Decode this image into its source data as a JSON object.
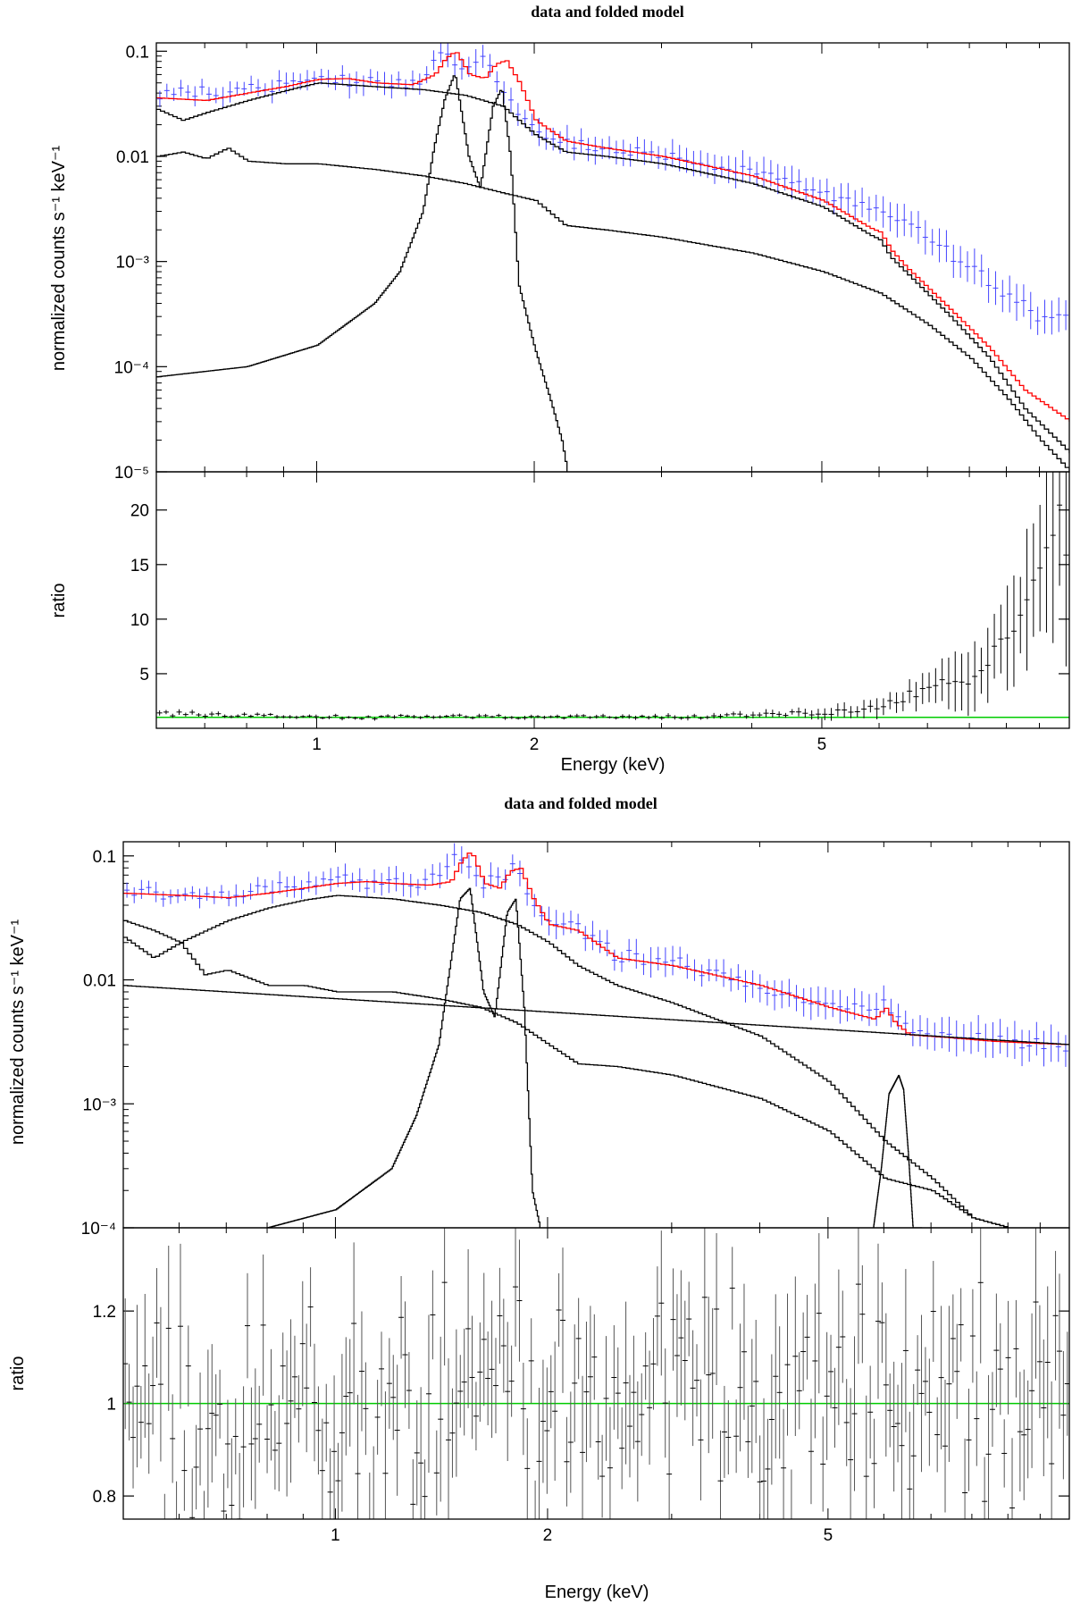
{
  "chart_data": [
    {
      "type": "line",
      "title": "data and folded model",
      "xlabel": "Energy (keV)",
      "x_scale": "log",
      "xlim": [
        0.6,
        11.0
      ],
      "x_ticks": [
        {
          "value": 1,
          "label": "1"
        },
        {
          "value": 2,
          "label": "2"
        },
        {
          "value": 5,
          "label": "5"
        }
      ],
      "top_panel": {
        "ylabel": "normalized counts s⁻¹ keV⁻¹",
        "y_scale": "log",
        "ylim": [
          1e-05,
          0.12
        ],
        "y_ticks": [
          {
            "value": 0.1,
            "label": "0.1"
          },
          {
            "value": 0.01,
            "label": "0.01"
          },
          {
            "value": 0.001,
            "label": "10⁻³"
          },
          {
            "value": 0.0001,
            "label": "10⁻⁴"
          },
          {
            "value": 1e-05,
            "label": "10⁻⁵"
          }
        ],
        "series": [
          {
            "name": "data",
            "style": "errorbars",
            "color": "#4444ff",
            "energies": [
              0.65,
              0.7,
              0.75,
              0.8,
              0.9,
              1.0,
              1.1,
              1.2,
              1.3,
              1.4,
              1.5,
              1.6,
              1.7,
              1.85,
              2.0,
              2.2,
              2.5,
              3.0,
              3.5,
              4.0,
              4.5,
              5.0,
              5.5,
              6.0,
              6.5,
              7.0,
              7.5,
              8.0,
              9.0,
              10.0
            ],
            "values": [
              0.04,
              0.042,
              0.04,
              0.044,
              0.048,
              0.058,
              0.052,
              0.05,
              0.05,
              0.052,
              0.1,
              0.058,
              0.085,
              0.035,
              0.018,
              0.014,
              0.012,
              0.01,
              0.0085,
              0.007,
              0.0055,
              0.0045,
              0.0035,
              0.003,
              0.0025,
              0.0018,
              0.0012,
              0.0009,
              0.0005,
              0.0003
            ]
          },
          {
            "name": "total model",
            "color": "#ff0000",
            "x": [
              0.6,
              0.7,
              0.8,
              0.9,
              1.0,
              1.1,
              1.2,
              1.35,
              1.45,
              1.5,
              1.55,
              1.62,
              1.7,
              1.76,
              1.82,
              1.9,
              2.0,
              2.2,
              2.5,
              3.0,
              4.0,
              5.0,
              5.8,
              6.0,
              6.2,
              6.5,
              7.5,
              8.5,
              9.5,
              11.0
            ],
            "y": [
              0.036,
              0.034,
              0.04,
              0.046,
              0.054,
              0.055,
              0.05,
              0.048,
              0.06,
              0.085,
              0.1,
              0.06,
              0.055,
              0.075,
              0.082,
              0.05,
              0.022,
              0.014,
              0.012,
              0.01,
              0.0065,
              0.0038,
              0.0021,
              0.0019,
              0.0013,
              0.0009,
              0.00035,
              0.00015,
              6e-05,
              3e-05
            ]
          },
          {
            "name": "continuum component 1",
            "color": "#000000",
            "x": [
              0.6,
              0.65,
              0.7,
              0.8,
              0.9,
              1.0,
              1.2,
              1.4,
              1.6,
              1.8,
              2.0,
              2.2,
              2.5,
              3.0,
              4.0,
              5.0,
              5.8,
              6.0,
              6.2,
              6.5,
              7.5,
              8.5,
              9.5,
              11.0
            ],
            "y": [
              0.028,
              0.022,
              0.026,
              0.034,
              0.042,
              0.05,
              0.046,
              0.043,
              0.038,
              0.03,
              0.016,
              0.011,
              0.01,
              0.0085,
              0.0055,
              0.0033,
              0.0018,
              0.0016,
              0.0011,
              0.0008,
              0.0003,
              0.00012,
              4e-05,
              1.5e-05
            ]
          },
          {
            "name": "continuum component 2",
            "color": "#000000",
            "x": [
              0.6,
              0.65,
              0.7,
              0.75,
              0.8,
              0.9,
              1.0,
              1.2,
              1.4,
              1.6,
              1.8,
              2.0,
              2.2,
              2.5,
              3.0,
              4.0,
              5.0,
              6.0,
              7.0,
              8.0,
              9.0,
              10.0,
              11.0
            ],
            "y": [
              0.01,
              0.011,
              0.0095,
              0.012,
              0.009,
              0.0085,
              0.0085,
              0.0075,
              0.0065,
              0.0055,
              0.0045,
              0.0038,
              0.0022,
              0.002,
              0.0017,
              0.0012,
              0.0008,
              0.0005,
              0.00025,
              0.00012,
              5e-05,
              2e-05,
              1e-05
            ]
          },
          {
            "name": "line component",
            "color": "#000000",
            "x": [
              0.6,
              0.8,
              1.0,
              1.2,
              1.3,
              1.4,
              1.45,
              1.5,
              1.55,
              1.62,
              1.68,
              1.75,
              1.8,
              1.85,
              1.9,
              2.0,
              2.1,
              2.18,
              2.22
            ],
            "y": [
              8e-05,
              0.0001,
              0.00016,
              0.0004,
              0.0008,
              0.003,
              0.012,
              0.035,
              0.062,
              0.01,
              0.005,
              0.03,
              0.045,
              0.01,
              0.0006,
              0.00015,
              5e-05,
              2e-05,
              1e-05
            ]
          }
        ]
      },
      "bottom_panel": {
        "ylabel": "ratio",
        "ylim": [
          0,
          23.5
        ],
        "y_ticks": [
          {
            "value": 5,
            "label": "5"
          },
          {
            "value": 10,
            "label": "10"
          },
          {
            "value": 15,
            "label": "15"
          },
          {
            "value": 20,
            "label": "20"
          }
        ],
        "reference_line": {
          "value": 1,
          "color": "#00cc00"
        },
        "series": [
          {
            "name": "ratio",
            "style": "errorbars",
            "color": "#000000",
            "energies": [
              0.65,
              0.8,
              1.0,
              1.2,
              1.5,
              2.0,
              2.5,
              3.0,
              3.5,
              4.0,
              4.5,
              5.0,
              5.5,
              6.0,
              6.5,
              7.0,
              7.5,
              8.0,
              8.5,
              9.0,
              9.5,
              10.0,
              10.5
            ],
            "values": [
              1.3,
              1.2,
              1.1,
              1.0,
              1.1,
              1.0,
              1.05,
              1.0,
              1.1,
              1.2,
              1.3,
              1.4,
              1.6,
              2.0,
              2.8,
              3.5,
              4.2,
              4.8,
              6.0,
              8.0,
              10.5,
              14.0,
              18.0
            ],
            "errors": [
              0.2,
              0.15,
              0.15,
              0.15,
              0.15,
              0.15,
              0.15,
              0.2,
              0.2,
              0.3,
              0.3,
              0.4,
              0.6,
              0.8,
              1.0,
              1.5,
              2.0,
              2.5,
              3.0,
              4.0,
              5.0,
              7.0,
              9.0
            ]
          }
        ]
      }
    },
    {
      "type": "line",
      "title": "data and folded model",
      "xlabel": "Energy (keV)",
      "x_scale": "log",
      "xlim": [
        0.5,
        11.0
      ],
      "x_ticks": [
        {
          "value": 1,
          "label": "1"
        },
        {
          "value": 2,
          "label": "2"
        },
        {
          "value": 5,
          "label": "5"
        }
      ],
      "top_panel": {
        "ylabel": "normalized counts s⁻¹ keV⁻¹",
        "y_scale": "log",
        "ylim": [
          0.0001,
          0.13
        ],
        "y_ticks": [
          {
            "value": 0.1,
            "label": "0.1"
          },
          {
            "value": 0.01,
            "label": "0.01"
          },
          {
            "value": 0.001,
            "label": "10⁻³"
          },
          {
            "value": 0.0001,
            "label": "10⁻⁴"
          }
        ],
        "series": [
          {
            "name": "data",
            "style": "errorbars",
            "color": "#4444ff",
            "energies": [
              0.55,
              0.6,
              0.65,
              0.7,
              0.8,
              0.9,
              1.0,
              1.1,
              1.2,
              1.3,
              1.4,
              1.5,
              1.6,
              1.7,
              1.8,
              1.9,
              2.0,
              2.2,
              2.5,
              3.0,
              3.5,
              4.0,
              4.5,
              5.0,
              5.5,
              6.0,
              6.5,
              7.0,
              8.0,
              9.0,
              10.0
            ],
            "values": [
              0.05,
              0.048,
              0.045,
              0.05,
              0.055,
              0.058,
              0.065,
              0.062,
              0.06,
              0.06,
              0.065,
              0.11,
              0.06,
              0.065,
              0.085,
              0.04,
              0.028,
              0.026,
              0.016,
              0.014,
              0.011,
              0.009,
              0.0075,
              0.0065,
              0.0058,
              0.0068,
              0.004,
              0.0038,
              0.0035,
              0.0032,
              0.003
            ]
          },
          {
            "name": "total model",
            "color": "#ff0000",
            "x": [
              0.5,
              0.6,
              0.7,
              0.8,
              0.9,
              1.0,
              1.1,
              1.2,
              1.35,
              1.45,
              1.5,
              1.55,
              1.62,
              1.7,
              1.76,
              1.82,
              1.9,
              2.0,
              2.2,
              2.5,
              3.0,
              4.0,
              5.0,
              5.8,
              6.0,
              6.2,
              6.5,
              7.5,
              8.5,
              9.5,
              11.0
            ],
            "y": [
              0.05,
              0.048,
              0.046,
              0.05,
              0.055,
              0.06,
              0.062,
              0.06,
              0.058,
              0.062,
              0.09,
              0.11,
              0.06,
              0.055,
              0.075,
              0.08,
              0.045,
              0.028,
              0.025,
              0.015,
              0.013,
              0.009,
              0.006,
              0.0048,
              0.006,
              0.0045,
              0.0036,
              0.0034,
              0.0032,
              0.0031,
              0.003
            ]
          },
          {
            "name": "continuum component 1",
            "color": "#000000",
            "x": [
              0.5,
              0.55,
              0.6,
              0.7,
              0.8,
              0.9,
              1.0,
              1.2,
              1.4,
              1.6,
              1.8,
              2.0,
              2.2,
              2.5,
              3.0,
              4.0,
              5.0,
              6.0,
              7.0,
              8.0,
              9.0
            ],
            "y": [
              0.03,
              0.025,
              0.02,
              0.03,
              0.038,
              0.044,
              0.048,
              0.045,
              0.04,
              0.035,
              0.028,
              0.02,
              0.013,
              0.009,
              0.0065,
              0.0035,
              0.0015,
              0.0005,
              0.00025,
              0.00012,
              0.0001
            ]
          },
          {
            "name": "continuum component 2",
            "color": "#000000",
            "x": [
              0.5,
              0.55,
              0.6,
              0.65,
              0.7,
              0.8,
              0.9,
              1.0,
              1.2,
              1.4,
              1.6,
              1.8,
              2.0,
              2.2,
              2.5,
              3.0,
              4.0,
              5.0,
              6.0,
              7.0,
              8.0,
              9.0
            ],
            "y": [
              0.022,
              0.015,
              0.02,
              0.011,
              0.012,
              0.009,
              0.009,
              0.008,
              0.008,
              0.007,
              0.006,
              0.0045,
              0.003,
              0.0021,
              0.002,
              0.0017,
              0.0011,
              0.0006,
              0.00025,
              0.0002,
              0.00012,
              0.0001
            ]
          },
          {
            "name": "power-law component",
            "color": "#000000",
            "x": [
              0.5,
              11.0
            ],
            "y": [
              0.009,
              0.003
            ]
          },
          {
            "name": "line component",
            "color": "#000000",
            "x": [
              0.8,
              1.0,
              1.2,
              1.3,
              1.4,
              1.45,
              1.5,
              1.55,
              1.62,
              1.68,
              1.75,
              1.8,
              1.85,
              1.9,
              1.95
            ],
            "y": [
              0.0001,
              0.00014,
              0.0003,
              0.0008,
              0.003,
              0.012,
              0.045,
              0.055,
              0.008,
              0.005,
              0.035,
              0.045,
              0.006,
              0.0002,
              0.0001
            ]
          },
          {
            "name": "iron line component",
            "color": "#000000",
            "x": [
              5.8,
              5.95,
              6.1,
              6.3,
              6.4,
              6.5,
              6.6,
              6.8
            ],
            "y": [
              0.0001,
              0.0003,
              0.0012,
              0.0017,
              0.0013,
              0.0004,
              0.0001,
              0.0001
            ]
          }
        ]
      },
      "bottom_panel": {
        "ylabel": "ratio",
        "ylim": [
          0.75,
          1.38
        ],
        "y_ticks": [
          {
            "value": 0.8,
            "label": "0.8"
          },
          {
            "value": 1,
            "label": "1"
          },
          {
            "value": 1.2,
            "label": "1.2"
          }
        ],
        "reference_line": {
          "value": 1,
          "color": "#00cc00"
        },
        "series": [
          {
            "name": "ratio",
            "style": "errorbars",
            "color": "#000000",
            "count": 240,
            "center": 1.0,
            "scatter": 0.15,
            "error": 0.12
          }
        ]
      }
    }
  ]
}
